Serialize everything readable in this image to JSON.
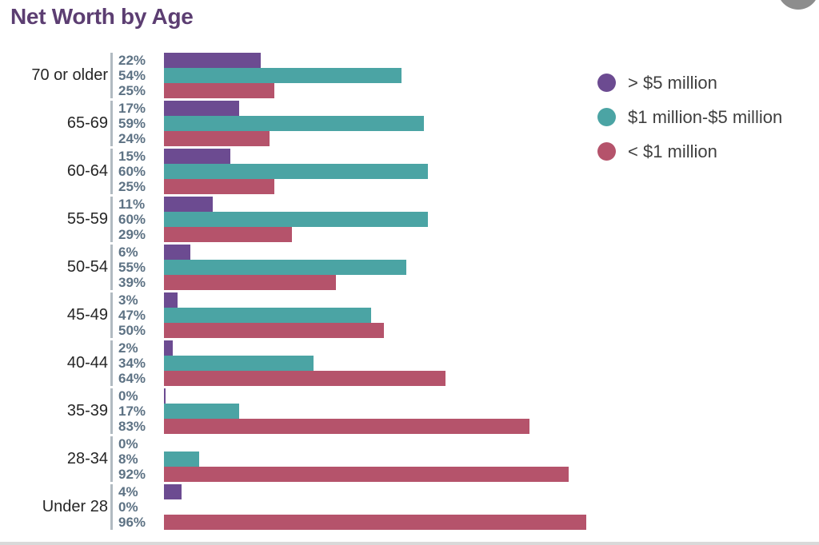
{
  "title": "Net Worth by Age",
  "colors": {
    "title": "#5c3e72",
    "age_label": "#262626",
    "value_label": "#5d7284",
    "tick_line": "#b1bac1",
    "legend_text": "#3f3f3f",
    "bottom_strip": "#d9d9d9",
    "floating_button": "#8d8d8d"
  },
  "chart_data": {
    "type": "bar",
    "orientation": "horizontal",
    "title": "Net Worth by Age",
    "xlabel": "",
    "ylabel": "",
    "xlim": [
      0,
      100
    ],
    "grid": false,
    "legend_position": "right",
    "value_label_format": "percent",
    "series": [
      {
        "name": "> $5 million",
        "color": "#6c4b91"
      },
      {
        "name": "$1 million-$5 million",
        "color": "#4ba4a4"
      },
      {
        "name": "< $1 million",
        "color": "#b5536b"
      }
    ],
    "categories": [
      "70 or older",
      "65-69",
      "60-64",
      "55-59",
      "50-54",
      "45-49",
      "40-44",
      "35-39",
      "28-34",
      "Under 28"
    ],
    "groups": [
      {
        "label": "70 or older",
        "bars": [
          {
            "value": 22,
            "label": "22%"
          },
          {
            "value": 54,
            "label": "54%"
          },
          {
            "value": 25,
            "label": "25%"
          }
        ]
      },
      {
        "label": "65-69",
        "bars": [
          {
            "value": 17,
            "label": "17%"
          },
          {
            "value": 59,
            "label": "59%"
          },
          {
            "value": 24,
            "label": "24%"
          }
        ]
      },
      {
        "label": "60-64",
        "bars": [
          {
            "value": 15,
            "label": "15%"
          },
          {
            "value": 60,
            "label": "60%"
          },
          {
            "value": 25,
            "label": "25%"
          }
        ]
      },
      {
        "label": "55-59",
        "bars": [
          {
            "value": 11,
            "label": "11%"
          },
          {
            "value": 60,
            "label": "60%"
          },
          {
            "value": 29,
            "label": "29%"
          }
        ]
      },
      {
        "label": "50-54",
        "bars": [
          {
            "value": 6,
            "label": "6%"
          },
          {
            "value": 55,
            "label": "55%"
          },
          {
            "value": 39,
            "label": "39%"
          }
        ]
      },
      {
        "label": "45-49",
        "bars": [
          {
            "value": 3,
            "label": "3%"
          },
          {
            "value": 47,
            "label": "47%"
          },
          {
            "value": 50,
            "label": "50%"
          }
        ]
      },
      {
        "label": "40-44",
        "bars": [
          {
            "value": 2,
            "label": "2%"
          },
          {
            "value": 34,
            "label": "34%"
          },
          {
            "value": 64,
            "label": "64%"
          }
        ]
      },
      {
        "label": "35-39",
        "bars": [
          {
            "value": 0,
            "label": "0%",
            "trace": true
          },
          {
            "value": 17,
            "label": "17%"
          },
          {
            "value": 83,
            "label": "83%"
          }
        ]
      },
      {
        "label": "28-34",
        "bars": [
          {
            "value": 0,
            "label": "0%"
          },
          {
            "value": 8,
            "label": "8%"
          },
          {
            "value": 92,
            "label": "92%"
          }
        ]
      },
      {
        "label": "Under 28",
        "bars": [
          {
            "value": 4,
            "label": "4%"
          },
          {
            "value": 0,
            "label": "0%"
          },
          {
            "value": 96,
            "label": "96%"
          }
        ]
      }
    ]
  }
}
